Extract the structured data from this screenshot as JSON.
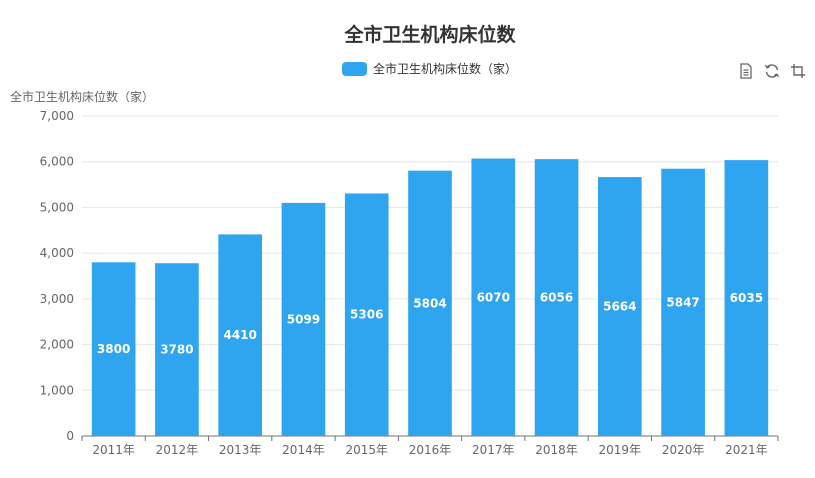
{
  "toolbox": {
    "icons": [
      "data-view-icon",
      "restore-icon",
      "save-image-icon"
    ]
  },
  "chart_data": {
    "type": "bar",
    "title": "全市卫生机构床位数",
    "ylabel": "全市卫生机构床位数（家）",
    "legend": [
      "全市卫生机构床位数（家）"
    ],
    "legend_position": "top-center",
    "categories": [
      "2011年",
      "2012年",
      "2013年",
      "2014年",
      "2015年",
      "2016年",
      "2017年",
      "2018年",
      "2019年",
      "2020年",
      "2021年"
    ],
    "series": [
      {
        "name": "全市卫生机构床位数（家）",
        "values": [
          3800,
          3780,
          4410,
          5099,
          5306,
          5804,
          6070,
          6056,
          5664,
          5847,
          6035
        ],
        "color": "#2fa4ef"
      }
    ],
    "ylim": [
      0,
      7000
    ],
    "yticks": [
      "0",
      "1,000",
      "2,000",
      "3,000",
      "4,000",
      "5,000",
      "6,000",
      "7,000"
    ],
    "grid": true
  }
}
